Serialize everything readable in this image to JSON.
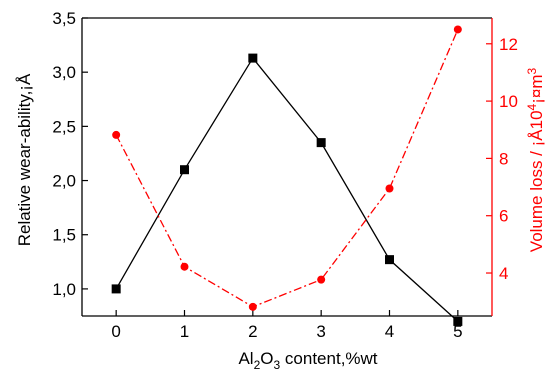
{
  "chart_data": {
    "type": "line",
    "x": [
      0,
      1,
      2,
      3,
      4,
      5
    ],
    "xlabel": "Al2O3 content,%wt",
    "xlabel_parts": {
      "a": "Al",
      "sub1": "2",
      "b": "O",
      "sub2": "3",
      "c": " content,%wt"
    },
    "xlim": [
      -0.5,
      5.5
    ],
    "x_ticks": [
      "0",
      "1",
      "2",
      "3",
      "4",
      "5"
    ],
    "left_axis": {
      "label": "Relative wear-ability,¡Å",
      "ylim": [
        0.75,
        3.5
      ],
      "ticks": [
        "1,0",
        "1,5",
        "2,0",
        "2,5",
        "3,0",
        "3,5"
      ],
      "tick_values": [
        1.0,
        1.5,
        2.0,
        2.5,
        3.0,
        3.5
      ]
    },
    "right_axis": {
      "label": "Volume loss / ¡Å10",
      "label_sup": "4",
      "label_mid": "¡¤m",
      "label_sup2": "3",
      "ylim": [
        2.5,
        12.9
      ],
      "ticks": [
        "4",
        "6",
        "8",
        "10",
        "12"
      ],
      "tick_values": [
        4,
        6,
        8,
        10,
        12
      ],
      "color": "#ff0000"
    },
    "series": [
      {
        "axis": "left",
        "values": [
          1.0,
          2.1,
          3.13,
          2.35,
          1.27,
          0.7
        ],
        "color": "#000000",
        "marker": "square",
        "line_style": "solid"
      },
      {
        "axis": "right",
        "values": [
          8.82,
          4.22,
          2.82,
          3.77,
          6.95,
          12.5
        ],
        "color": "#ff0000",
        "marker": "circle",
        "line_style": "dash-dot"
      }
    ],
    "grid": false,
    "legend": "none"
  }
}
